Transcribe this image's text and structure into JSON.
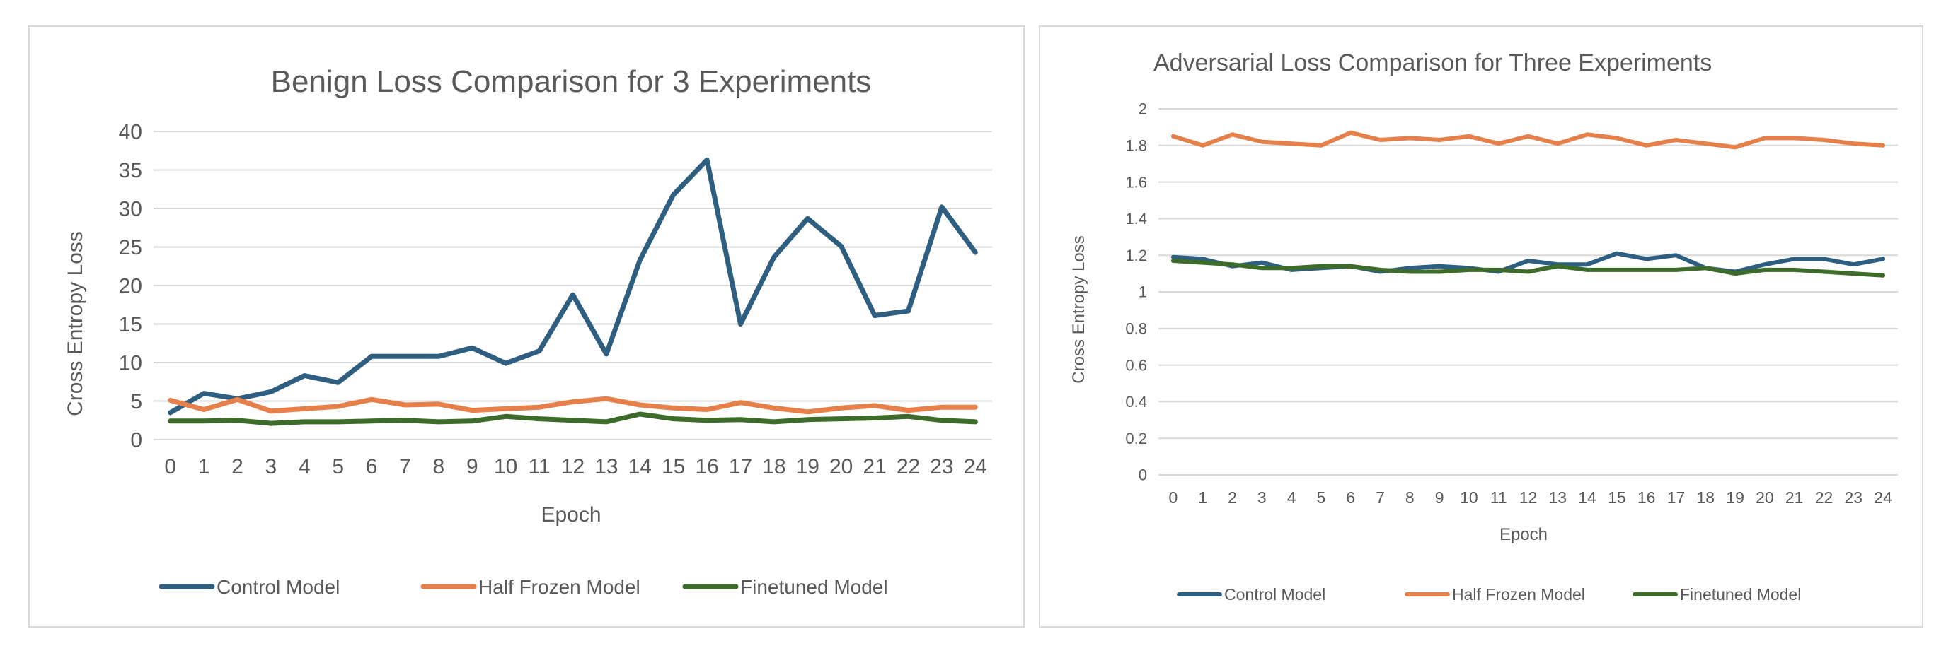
{
  "chart_data": [
    {
      "type": "line",
      "title": "Benign Loss Comparison for 3 Experiments",
      "xlabel": "Epoch",
      "ylabel": "Cross Entropy Loss",
      "ylim": [
        0,
        40
      ],
      "yticks": [
        "0",
        "5",
        "10",
        "15",
        "20",
        "25",
        "30",
        "35",
        "40"
      ],
      "x": [
        0,
        1,
        2,
        3,
        4,
        5,
        6,
        7,
        8,
        9,
        10,
        11,
        12,
        13,
        14,
        15,
        16,
        17,
        18,
        19,
        20,
        21,
        22,
        23,
        24
      ],
      "grid": true,
      "legend_position": "bottom",
      "series": [
        {
          "name": "Control Model",
          "color": "#2e5f80",
          "values": [
            3.5,
            6.0,
            5.3,
            6.2,
            8.3,
            7.4,
            10.8,
            10.8,
            10.8,
            11.9,
            9.9,
            11.5,
            18.8,
            11.1,
            23.3,
            31.8,
            36.3,
            15.0,
            23.7,
            28.7,
            25.1,
            16.1,
            16.7,
            30.2,
            24.3
          ]
        },
        {
          "name": "Half Frozen Model",
          "color": "#e5804a",
          "values": [
            5.1,
            3.9,
            5.2,
            3.7,
            4.0,
            4.3,
            5.2,
            4.5,
            4.6,
            3.8,
            4.0,
            4.2,
            4.9,
            5.3,
            4.5,
            4.1,
            3.9,
            4.8,
            4.1,
            3.6,
            4.1,
            4.4,
            3.8,
            4.2,
            4.2
          ]
        },
        {
          "name": "Finetuned Model",
          "color": "#3d6b2a",
          "values": [
            2.4,
            2.4,
            2.5,
            2.1,
            2.3,
            2.3,
            2.4,
            2.5,
            2.3,
            2.4,
            3.0,
            2.7,
            2.5,
            2.3,
            3.3,
            2.7,
            2.5,
            2.6,
            2.3,
            2.6,
            2.7,
            2.8,
            3.0,
            2.5,
            2.3
          ]
        }
      ]
    },
    {
      "type": "line",
      "title": "Adversarial Loss Comparison for Three Experiments",
      "xlabel": "Epoch",
      "ylabel": "Cross Entropy Loss",
      "ylim": [
        0,
        2
      ],
      "yticks": [
        "0",
        "0.2",
        "0.4",
        "0.6",
        "0.8",
        "1",
        "1.2",
        "1.4",
        "1.6",
        "1.8",
        "2"
      ],
      "x": [
        0,
        1,
        2,
        3,
        4,
        5,
        6,
        7,
        8,
        9,
        10,
        11,
        12,
        13,
        14,
        15,
        16,
        17,
        18,
        19,
        20,
        21,
        22,
        23,
        24
      ],
      "grid": true,
      "legend_position": "bottom",
      "series": [
        {
          "name": "Control Model",
          "color": "#2e5f80",
          "values": [
            1.19,
            1.18,
            1.14,
            1.16,
            1.12,
            1.13,
            1.14,
            1.11,
            1.13,
            1.14,
            1.13,
            1.11,
            1.17,
            1.15,
            1.15,
            1.21,
            1.18,
            1.2,
            1.13,
            1.11,
            1.15,
            1.18,
            1.18,
            1.15,
            1.18
          ]
        },
        {
          "name": "Half Frozen Model",
          "color": "#e5804a",
          "values": [
            1.85,
            1.8,
            1.86,
            1.82,
            1.81,
            1.8,
            1.87,
            1.83,
            1.84,
            1.83,
            1.85,
            1.81,
            1.85,
            1.81,
            1.86,
            1.84,
            1.8,
            1.83,
            1.81,
            1.79,
            1.84,
            1.84,
            1.83,
            1.81,
            1.8
          ]
        },
        {
          "name": "Finetuned Model",
          "color": "#3d6b2a",
          "values": [
            1.17,
            1.16,
            1.15,
            1.13,
            1.13,
            1.14,
            1.14,
            1.12,
            1.11,
            1.11,
            1.12,
            1.12,
            1.11,
            1.14,
            1.12,
            1.12,
            1.12,
            1.12,
            1.13,
            1.1,
            1.12,
            1.12,
            1.11,
            1.1,
            1.09
          ]
        }
      ]
    }
  ]
}
